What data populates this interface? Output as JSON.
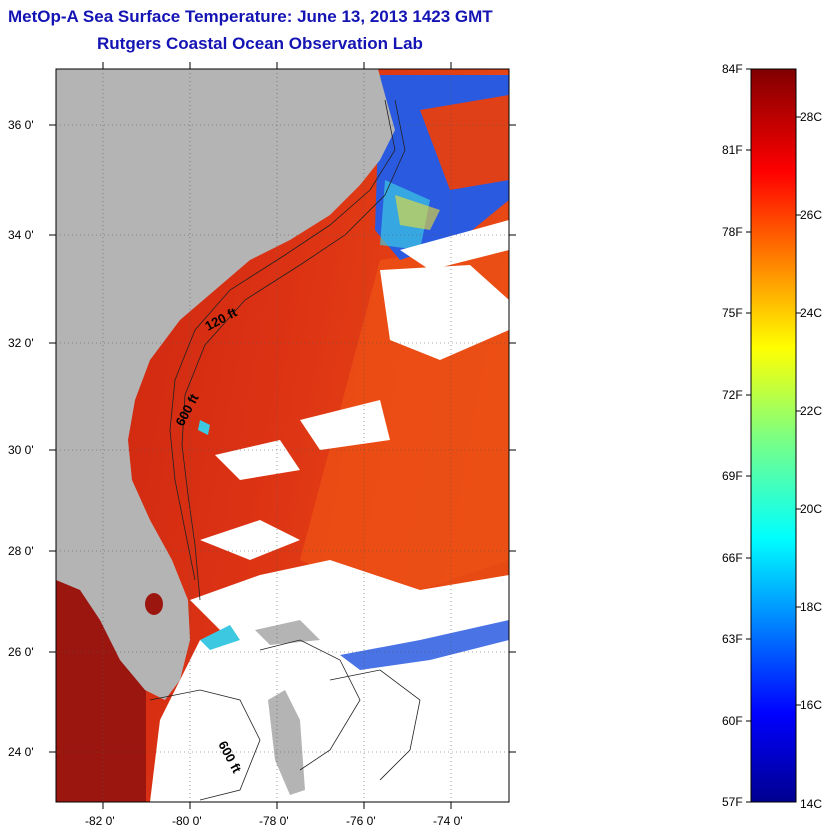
{
  "title_line1": "MetOp-A Sea Surface Temperature:  June 13, 2013 1423 GMT",
  "title_line2": "Rutgers Coastal Ocean Observation Lab",
  "lat_labels": [
    "36 0'",
    "34 0'",
    "32 0'",
    "30 0'",
    "28 0'",
    "26 0'",
    "24 0'"
  ],
  "lon_labels": [
    "-82 0'",
    "-80 0'",
    "-78 0'",
    "-76 0'",
    "-74 0'"
  ],
  "contour_labels": {
    "c120": "120 ft",
    "c600a": "600 ft",
    "c600b": "600 ft"
  },
  "colorbar": {
    "fahrenheit": [
      "84F",
      "81F",
      "78F",
      "75F",
      "72F",
      "69F",
      "66F",
      "63F",
      "60F",
      "57F"
    ],
    "celsius": [
      "28C",
      "26C",
      "24C",
      "22C",
      "20C",
      "18C",
      "16C",
      "14C"
    ],
    "range_f": [
      57,
      84
    ],
    "range_c": [
      14,
      28.9
    ]
  },
  "colors": {
    "title": "#1414b4",
    "land": "#b4b4b4",
    "warm": "#d22814",
    "cool": "#1e46dc"
  }
}
